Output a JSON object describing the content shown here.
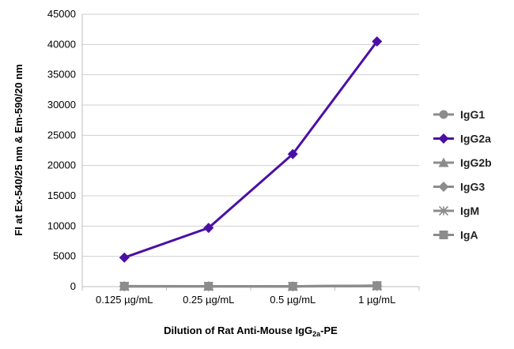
{
  "chart_data": {
    "type": "line",
    "title": "",
    "xlabel": "Dilution of Rat Anti-Mouse IgG2a-PE",
    "xlabel_parts": [
      "Dilution of Rat Anti-Mouse IgG",
      "2a",
      "-PE"
    ],
    "ylabel": "FI at Ex-540/25 nm & Em-590/20 nm",
    "categories": [
      "0.125 µg/mL",
      "0.25 µg/mL",
      "0.5 µg/mL",
      "1 µg/mL"
    ],
    "ylim": [
      0,
      45000
    ],
    "yticks": [
      0,
      5000,
      10000,
      15000,
      20000,
      25000,
      30000,
      35000,
      40000,
      45000
    ],
    "grid": true,
    "legend_position": "right",
    "series": [
      {
        "name": "IgG1",
        "values": [
          80,
          70,
          60,
          150
        ],
        "color": "#8c8c8c",
        "marker": "circle"
      },
      {
        "name": "IgG2a",
        "values": [
          4800,
          9700,
          21900,
          40500
        ],
        "color": "#4b0fa6",
        "marker": "diamond"
      },
      {
        "name": "IgG2b",
        "values": [
          60,
          60,
          50,
          130
        ],
        "color": "#8c8c8c",
        "marker": "triangle"
      },
      {
        "name": "IgG3",
        "values": [
          50,
          50,
          40,
          110
        ],
        "color": "#8c8c8c",
        "marker": "diamond"
      },
      {
        "name": "IgM",
        "values": [
          40,
          40,
          40,
          90
        ],
        "color": "#8c8c8c",
        "marker": "star"
      },
      {
        "name": "IgA",
        "values": [
          70,
          60,
          50,
          170
        ],
        "color": "#8c8c8c",
        "marker": "square"
      }
    ]
  }
}
